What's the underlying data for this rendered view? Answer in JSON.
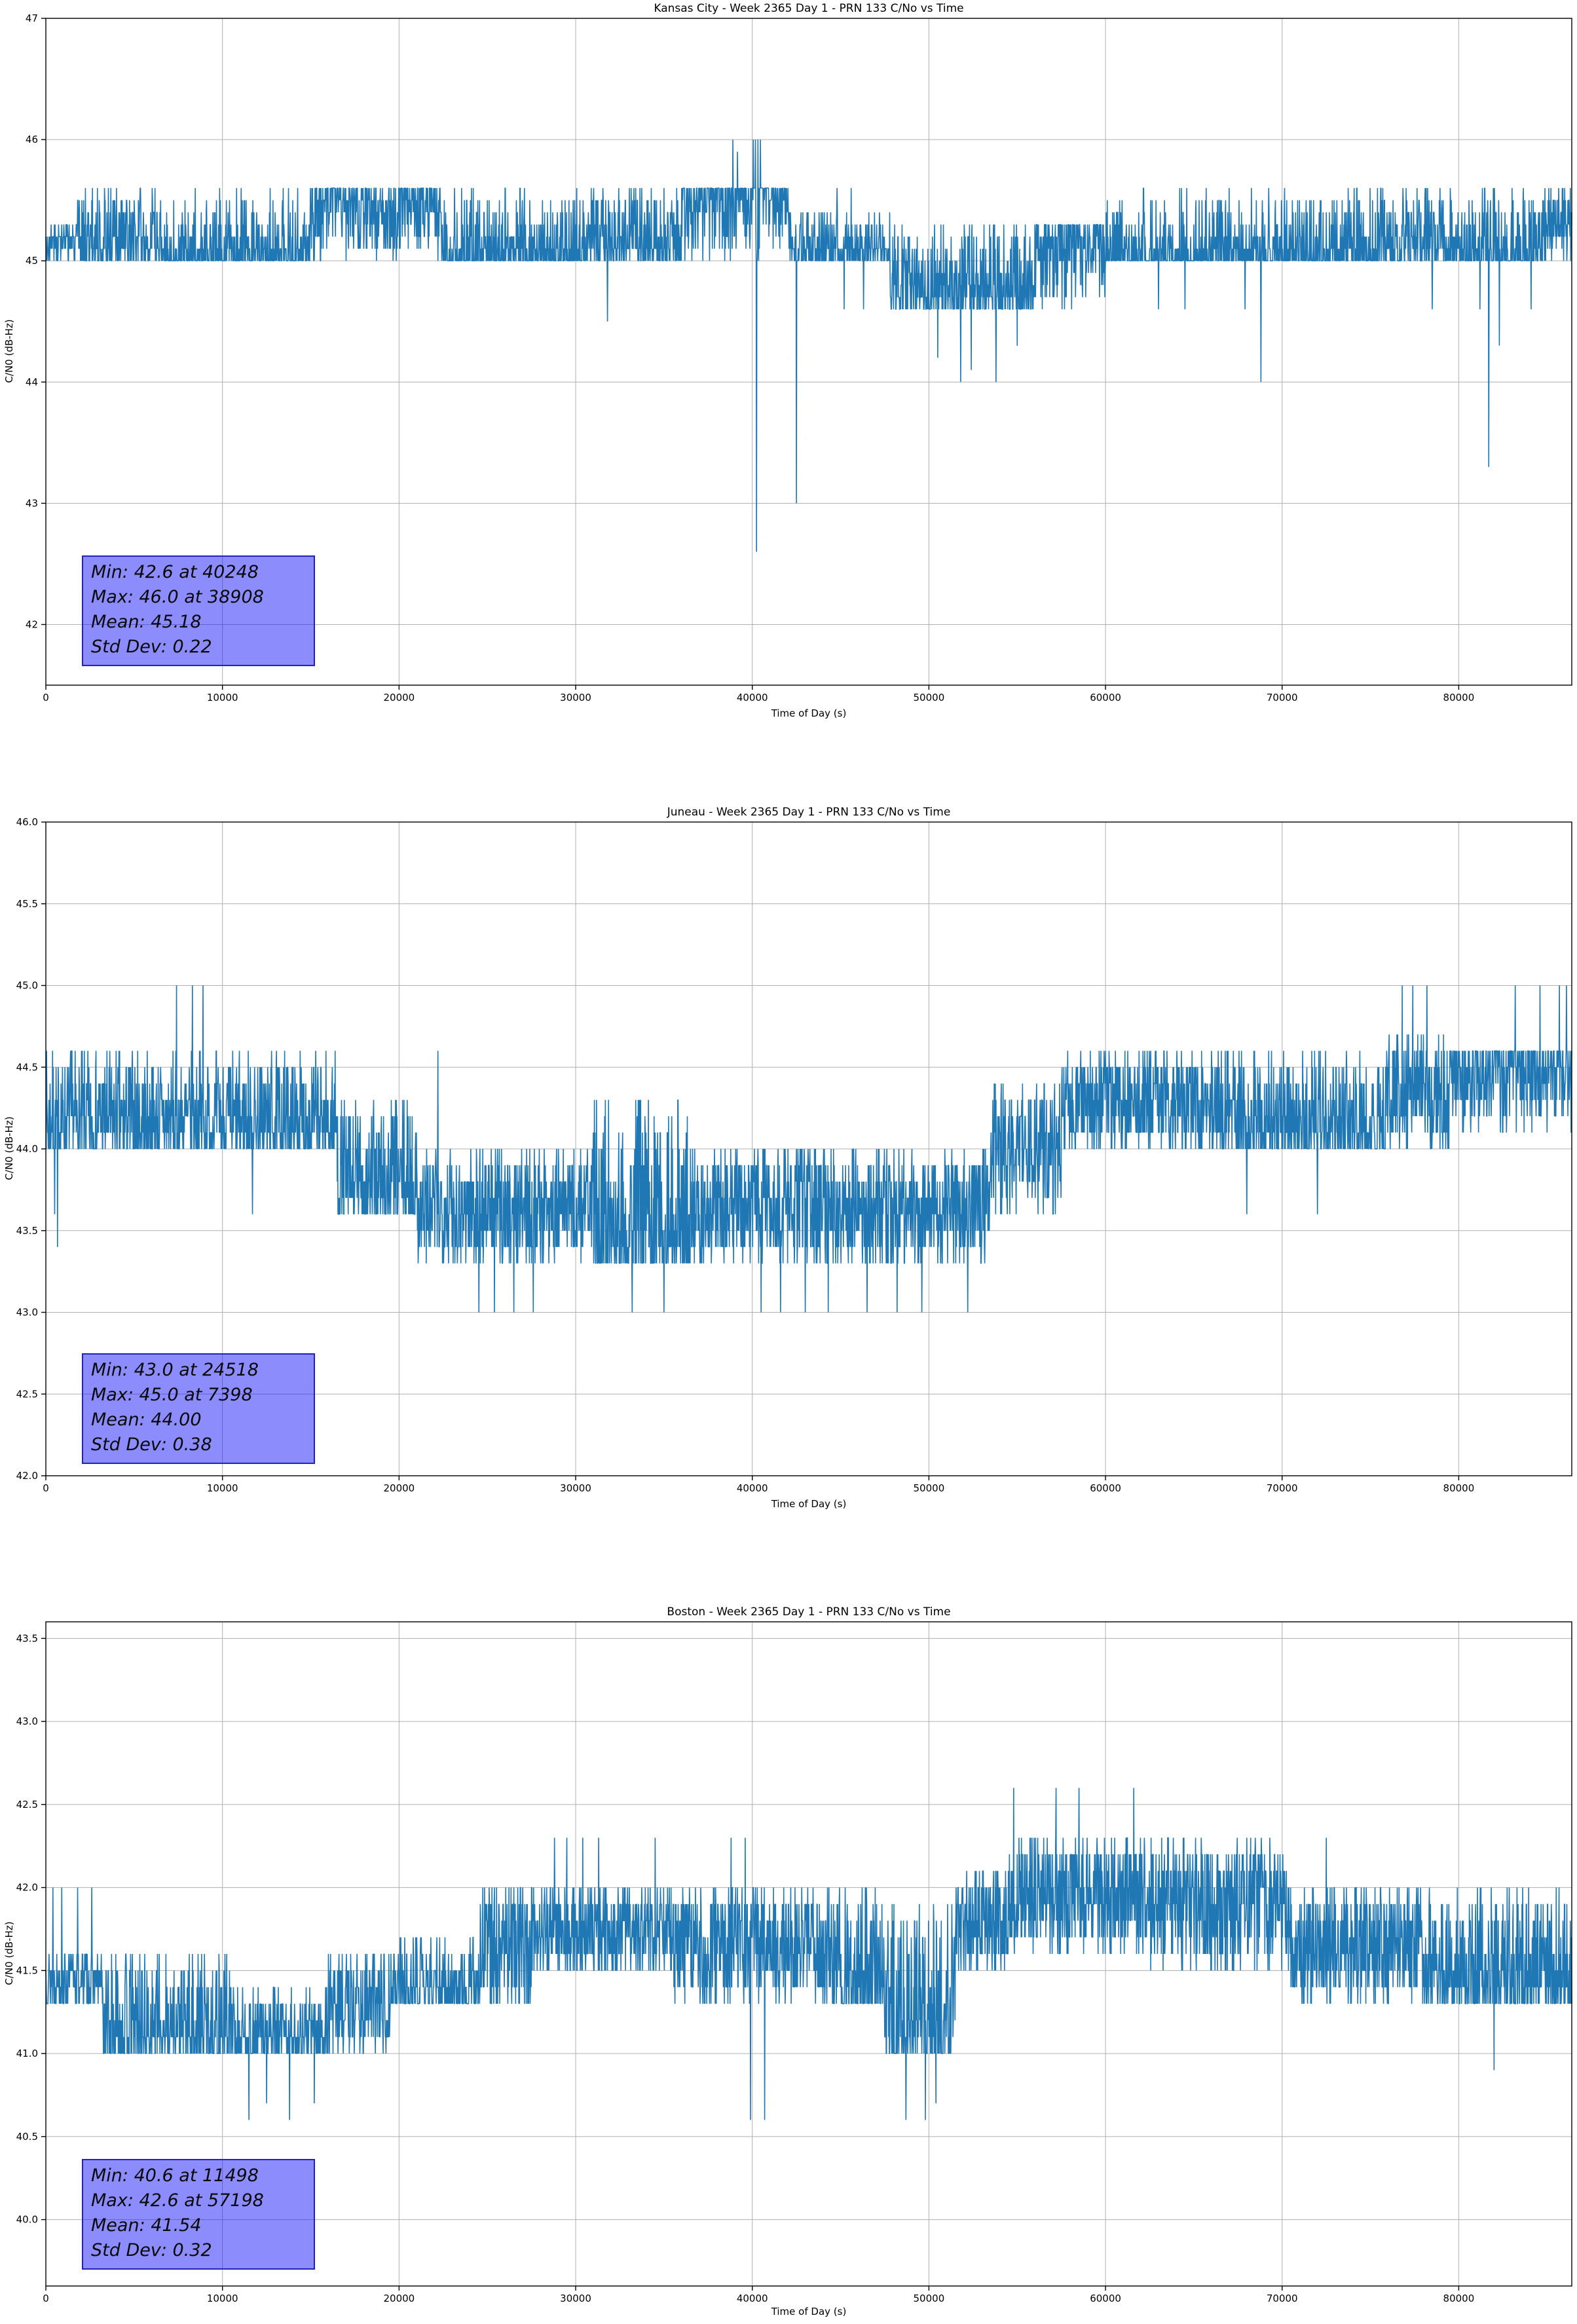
{
  "figure_background": "#ffffff",
  "chart_data": [
    {
      "type": "line",
      "title": "Kansas City - Week 2365 Day 1 - PRN 133 C/No vs Time",
      "xlabel": "Time of Day (s)",
      "ylabel": "C/N0 (dB-Hz)",
      "xlim": [
        0,
        86400
      ],
      "ylim": [
        41.5,
        47.0
      ],
      "xticks": [
        0,
        10000,
        20000,
        30000,
        40000,
        50000,
        60000,
        70000,
        80000
      ],
      "xtick_labels": [
        "0",
        "10000",
        "20000",
        "30000",
        "40000",
        "50000",
        "60000",
        "70000",
        "80000"
      ],
      "yticks": [
        42,
        43,
        44,
        45,
        46,
        47
      ],
      "ytick_labels": [
        "42",
        "43",
        "44",
        "45",
        "46",
        "47"
      ],
      "grid": true,
      "grid_color": "#b0b0b0",
      "line_color": "#1f77b4",
      "stats": {
        "min": 42.6,
        "min_t": 40248,
        "max": 46.0,
        "max_t": 38908,
        "mean": 45.18,
        "std_dev": 0.22
      },
      "stats_box": {
        "lines": [
          "Min: 42.6 at 40248",
          "Max: 46.0 at 38908",
          "Mean: 45.18",
          "Std Dev: 0.22"
        ],
        "bg_color": "#8787fa",
        "border_color": "#2222c0"
      },
      "series_model": {
        "note": "noisy 0.1-dB-quantized C/No trace, band segments in seconds",
        "quantize_db": 0.1,
        "sample_step_s": 20,
        "segments": [
          {
            "s": 0,
            "e": 1800,
            "lo": 45.0,
            "hi": 45.3,
            "bias": "u"
          },
          {
            "s": 1800,
            "e": 6500,
            "lo": 45.0,
            "hi": 45.6,
            "bias": "lo"
          },
          {
            "s": 6500,
            "e": 15000,
            "lo": 45.0,
            "hi": 45.6,
            "bias": "lo2"
          },
          {
            "s": 15000,
            "e": 22500,
            "lo": 45.0,
            "hi": 45.6,
            "bias": "hi"
          },
          {
            "s": 22500,
            "e": 30500,
            "lo": 45.0,
            "hi": 45.6,
            "bias": "lo2"
          },
          {
            "s": 30500,
            "e": 36000,
            "lo": 45.0,
            "hi": 45.6,
            "bias": "lo"
          },
          {
            "s": 36000,
            "e": 42200,
            "lo": 45.0,
            "hi": 45.6,
            "bias": "hi2"
          },
          {
            "s": 42200,
            "e": 47800,
            "lo": 45.0,
            "hi": 45.4,
            "bias": "lo"
          },
          {
            "s": 47800,
            "e": 56000,
            "lo": 44.6,
            "hi": 45.3,
            "bias": "lo"
          },
          {
            "s": 56000,
            "e": 60000,
            "lo": 44.6,
            "hi": 45.3,
            "bias": "hi"
          },
          {
            "s": 60000,
            "e": 66300,
            "lo": 45.0,
            "hi": 45.6,
            "bias": "lo2"
          },
          {
            "s": 66300,
            "e": 75500,
            "lo": 45.0,
            "hi": 45.6,
            "bias": "lo2"
          },
          {
            "s": 75500,
            "e": 80000,
            "lo": 45.0,
            "hi": 45.6,
            "bias": "lo"
          },
          {
            "s": 80000,
            "e": 84500,
            "lo": 45.0,
            "hi": 45.6,
            "bias": "lo2"
          },
          {
            "s": 84500,
            "e": 86400,
            "lo": 45.0,
            "hi": 45.6,
            "bias": "u"
          }
        ],
        "events": [
          {
            "t": 31800,
            "v": 44.5
          },
          {
            "t": 38908,
            "v": 46.0
          },
          {
            "t": 39150,
            "v": 45.9
          },
          {
            "t": 40050,
            "v": 46.0
          },
          {
            "t": 40180,
            "v": 46.0
          },
          {
            "t": 40248,
            "v": 42.6
          },
          {
            "t": 40320,
            "v": 46.0
          },
          {
            "t": 40450,
            "v": 46.0
          },
          {
            "t": 42500,
            "v": 43.0
          },
          {
            "t": 44800,
            "v": 45.6
          },
          {
            "t": 45600,
            "v": 45.6
          },
          {
            "t": 45200,
            "v": 44.6
          },
          {
            "t": 46300,
            "v": 44.6
          },
          {
            "t": 50500,
            "v": 44.2
          },
          {
            "t": 51800,
            "v": 44.0
          },
          {
            "t": 52400,
            "v": 44.1
          },
          {
            "t": 53800,
            "v": 44.0
          },
          {
            "t": 55000,
            "v": 44.3
          },
          {
            "t": 63000,
            "v": 44.6
          },
          {
            "t": 64500,
            "v": 44.6
          },
          {
            "t": 67900,
            "v": 44.6
          },
          {
            "t": 68800,
            "v": 44.0
          },
          {
            "t": 78500,
            "v": 44.6
          },
          {
            "t": 81200,
            "v": 44.6
          },
          {
            "t": 81700,
            "v": 43.3
          },
          {
            "t": 82300,
            "v": 44.3
          },
          {
            "t": 84100,
            "v": 44.6
          }
        ]
      }
    },
    {
      "type": "line",
      "title": "Juneau - Week 2365 Day 1 - PRN 133 C/No vs Time",
      "xlabel": "Time of Day (s)",
      "ylabel": "C/N0 (dB-Hz)",
      "xlim": [
        0,
        86400
      ],
      "ylim": [
        42.0,
        46.0
      ],
      "xticks": [
        0,
        10000,
        20000,
        30000,
        40000,
        50000,
        60000,
        70000,
        80000
      ],
      "xtick_labels": [
        "0",
        "10000",
        "20000",
        "30000",
        "40000",
        "50000",
        "60000",
        "70000",
        "80000"
      ],
      "yticks": [
        42.0,
        42.5,
        43.0,
        43.5,
        44.0,
        44.5,
        45.0,
        45.5,
        46.0
      ],
      "ytick_labels": [
        "42.0",
        "42.5",
        "43.0",
        "43.5",
        "44.0",
        "44.5",
        "45.0",
        "45.5",
        "46.0"
      ],
      "grid": true,
      "grid_color": "#b0b0b0",
      "line_color": "#1f77b4",
      "stats": {
        "min": 43.0,
        "min_t": 24518,
        "max": 45.0,
        "max_t": 7398,
        "mean": 44.0,
        "std_dev": 0.38
      },
      "stats_box": {
        "lines": [
          "Min: 43.0 at 24518",
          "Max: 45.0 at 7398",
          "Mean: 44.00",
          "Std Dev: 0.38"
        ],
        "bg_color": "#8787fa",
        "border_color": "#2222c0"
      },
      "series_model": {
        "note": "noisy 0.1-dB-quantized C/No trace, band segments in seconds",
        "quantize_db": 0.1,
        "sample_step_s": 20,
        "segments": [
          {
            "s": 0,
            "e": 7000,
            "lo": 44.0,
            "hi": 44.6,
            "bias": "lo"
          },
          {
            "s": 7000,
            "e": 9200,
            "lo": 44.0,
            "hi": 44.6,
            "bias": "lo"
          },
          {
            "s": 9200,
            "e": 16500,
            "lo": 44.0,
            "hi": 44.6,
            "bias": "lo"
          },
          {
            "s": 16500,
            "e": 21000,
            "lo": 43.6,
            "hi": 44.3,
            "bias": "lo"
          },
          {
            "s": 21000,
            "e": 31000,
            "lo": 43.3,
            "hi": 44.0,
            "bias": "u"
          },
          {
            "s": 31000,
            "e": 36500,
            "lo": 43.3,
            "hi": 44.3,
            "bias": "lo"
          },
          {
            "s": 36500,
            "e": 44500,
            "lo": 43.3,
            "hi": 44.0,
            "bias": "u"
          },
          {
            "s": 44500,
            "e": 53500,
            "lo": 43.3,
            "hi": 44.0,
            "bias": "u"
          },
          {
            "s": 53500,
            "e": 57500,
            "lo": 43.6,
            "hi": 44.4,
            "bias": "u"
          },
          {
            "s": 57500,
            "e": 66500,
            "lo": 44.0,
            "hi": 44.6,
            "bias": "u"
          },
          {
            "s": 66500,
            "e": 76000,
            "lo": 44.0,
            "hi": 44.6,
            "bias": "lo"
          },
          {
            "s": 76000,
            "e": 79500,
            "lo": 44.0,
            "hi": 44.7,
            "bias": "u"
          },
          {
            "s": 79500,
            "e": 86400,
            "lo": 44.1,
            "hi": 44.6,
            "bias": "hi"
          }
        ],
        "events": [
          {
            "t": 500,
            "v": 43.6
          },
          {
            "t": 650,
            "v": 43.4
          },
          {
            "t": 7398,
            "v": 45.0
          },
          {
            "t": 8300,
            "v": 45.0
          },
          {
            "t": 8900,
            "v": 45.0
          },
          {
            "t": 11700,
            "v": 43.6
          },
          {
            "t": 22200,
            "v": 44.6
          },
          {
            "t": 24518,
            "v": 43.0
          },
          {
            "t": 25400,
            "v": 43.0
          },
          {
            "t": 26500,
            "v": 43.0
          },
          {
            "t": 27600,
            "v": 43.0
          },
          {
            "t": 33200,
            "v": 43.0
          },
          {
            "t": 35000,
            "v": 43.0
          },
          {
            "t": 40500,
            "v": 43.0
          },
          {
            "t": 41600,
            "v": 43.0
          },
          {
            "t": 43000,
            "v": 43.0
          },
          {
            "t": 44300,
            "v": 43.0
          },
          {
            "t": 46500,
            "v": 43.0
          },
          {
            "t": 48200,
            "v": 43.0
          },
          {
            "t": 49600,
            "v": 43.0
          },
          {
            "t": 52200,
            "v": 43.0
          },
          {
            "t": 68000,
            "v": 43.6
          },
          {
            "t": 72000,
            "v": 43.6
          },
          {
            "t": 76800,
            "v": 45.0
          },
          {
            "t": 77400,
            "v": 45.0
          },
          {
            "t": 78200,
            "v": 45.0
          },
          {
            "t": 83200,
            "v": 45.0
          },
          {
            "t": 84600,
            "v": 45.0
          },
          {
            "t": 85700,
            "v": 45.0
          },
          {
            "t": 86100,
            "v": 45.0
          }
        ]
      }
    },
    {
      "type": "line",
      "title": "Boston - Week 2365 Day 1 - PRN 133 C/No vs Time",
      "xlabel": "Time of Day (s)",
      "ylabel": "C/N0 (dB-Hz)",
      "xlim": [
        0,
        86400
      ],
      "ylim": [
        39.6,
        43.6
      ],
      "xticks": [
        0,
        10000,
        20000,
        30000,
        40000,
        50000,
        60000,
        70000,
        80000
      ],
      "xtick_labels": [
        "0",
        "10000",
        "20000",
        "30000",
        "40000",
        "50000",
        "60000",
        "70000",
        "80000"
      ],
      "yticks": [
        40.0,
        40.5,
        41.0,
        41.5,
        42.0,
        42.5,
        43.0,
        43.5
      ],
      "ytick_labels": [
        "40.0",
        "40.5",
        "41.0",
        "41.5",
        "42.0",
        "42.5",
        "43.0",
        "43.5"
      ],
      "grid": true,
      "grid_color": "#b0b0b0",
      "line_color": "#1f77b4",
      "stats": {
        "min": 40.6,
        "min_t": 11498,
        "max": 42.6,
        "max_t": 57198,
        "mean": 41.54,
        "std_dev": 0.32
      },
      "stats_box": {
        "lines": [
          "Min: 40.6 at 11498",
          "Max: 42.6 at 57198",
          "Mean: 41.54",
          "Std Dev: 0.32"
        ],
        "bg_color": "#8787fa",
        "border_color": "#2222c0"
      },
      "series_model": {
        "note": "noisy 0.1-dB-quantized C/No trace, band segments in seconds",
        "quantize_db": 0.1,
        "sample_step_s": 20,
        "segments": [
          {
            "s": 0,
            "e": 3200,
            "lo": 41.3,
            "hi": 41.6,
            "bias": "u"
          },
          {
            "s": 3200,
            "e": 10500,
            "lo": 41.0,
            "hi": 41.6,
            "bias": "lo"
          },
          {
            "s": 10500,
            "e": 16000,
            "lo": 41.0,
            "hi": 41.4,
            "bias": "lo"
          },
          {
            "s": 16000,
            "e": 19500,
            "lo": 41.0,
            "hi": 41.6,
            "bias": "u"
          },
          {
            "s": 19500,
            "e": 24500,
            "lo": 41.3,
            "hi": 41.7,
            "bias": "lo"
          },
          {
            "s": 24500,
            "e": 27500,
            "lo": 41.3,
            "hi": 42.0,
            "bias": "u"
          },
          {
            "s": 27500,
            "e": 35500,
            "lo": 41.5,
            "hi": 42.0,
            "bias": "u"
          },
          {
            "s": 35500,
            "e": 44500,
            "lo": 41.3,
            "hi": 42.0,
            "bias": "u"
          },
          {
            "s": 44500,
            "e": 47500,
            "lo": 41.3,
            "hi": 42.0,
            "bias": "lo"
          },
          {
            "s": 47500,
            "e": 51500,
            "lo": 41.0,
            "hi": 41.9,
            "bias": "lo"
          },
          {
            "s": 51500,
            "e": 54500,
            "lo": 41.5,
            "hi": 42.1,
            "bias": "u"
          },
          {
            "s": 54500,
            "e": 62500,
            "lo": 41.6,
            "hi": 42.3,
            "bias": "u"
          },
          {
            "s": 62500,
            "e": 70500,
            "lo": 41.5,
            "hi": 42.3,
            "bias": "u"
          },
          {
            "s": 70500,
            "e": 78000,
            "lo": 41.3,
            "hi": 42.0,
            "bias": "u"
          },
          {
            "s": 78000,
            "e": 86400,
            "lo": 41.3,
            "hi": 42.0,
            "bias": "lo"
          }
        ],
        "events": [
          {
            "t": 400,
            "v": 42.0
          },
          {
            "t": 900,
            "v": 42.0
          },
          {
            "t": 1800,
            "v": 42.0
          },
          {
            "t": 2600,
            "v": 42.0
          },
          {
            "t": 11498,
            "v": 40.6
          },
          {
            "t": 12500,
            "v": 40.7
          },
          {
            "t": 13800,
            "v": 40.6
          },
          {
            "t": 15200,
            "v": 40.7
          },
          {
            "t": 28800,
            "v": 42.3
          },
          {
            "t": 29500,
            "v": 42.3
          },
          {
            "t": 30400,
            "v": 42.3
          },
          {
            "t": 31300,
            "v": 42.3
          },
          {
            "t": 34500,
            "v": 42.3
          },
          {
            "t": 38800,
            "v": 42.3
          },
          {
            "t": 39600,
            "v": 42.3
          },
          {
            "t": 39900,
            "v": 40.6
          },
          {
            "t": 40700,
            "v": 40.6
          },
          {
            "t": 48700,
            "v": 40.6
          },
          {
            "t": 49800,
            "v": 40.6
          },
          {
            "t": 50400,
            "v": 40.7
          },
          {
            "t": 54800,
            "v": 42.6
          },
          {
            "t": 57198,
            "v": 42.6
          },
          {
            "t": 58500,
            "v": 42.6
          },
          {
            "t": 61600,
            "v": 42.6
          },
          {
            "t": 72500,
            "v": 42.3
          },
          {
            "t": 82000,
            "v": 40.9
          }
        ]
      }
    }
  ]
}
